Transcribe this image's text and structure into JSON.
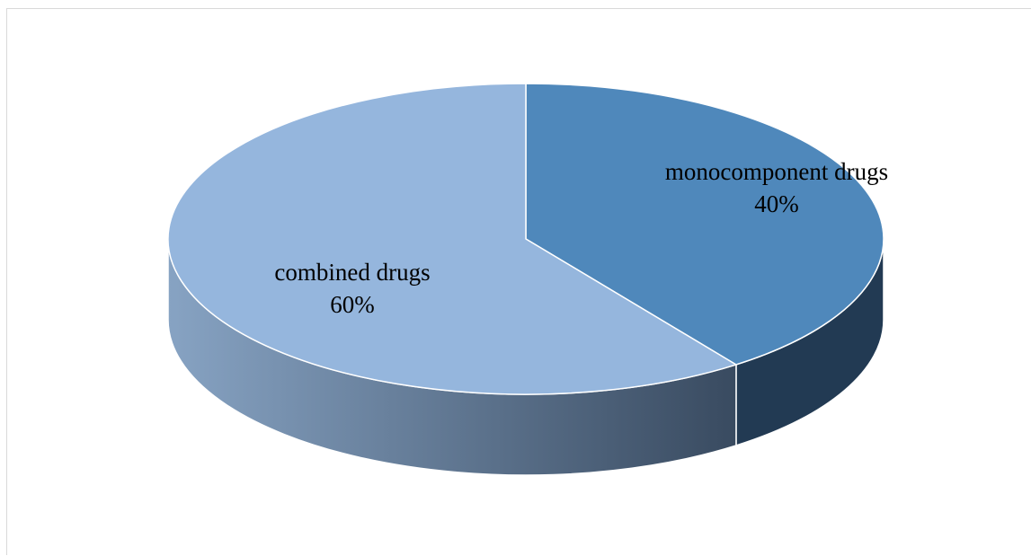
{
  "chart_data": {
    "type": "pie",
    "title": "",
    "categories": [
      "monocomponent drugs",
      "combined drugs"
    ],
    "values": [
      40,
      60
    ],
    "value_labels": [
      "40%",
      "60%"
    ],
    "colors": {
      "monocomponent drugs": "#4f88bb",
      "combined drugs": "#95b6dd",
      "side_light": "#87a3c3",
      "side_dark": "#34455a",
      "side_mono": "#223a53"
    },
    "style": "3d",
    "legend": "none"
  }
}
